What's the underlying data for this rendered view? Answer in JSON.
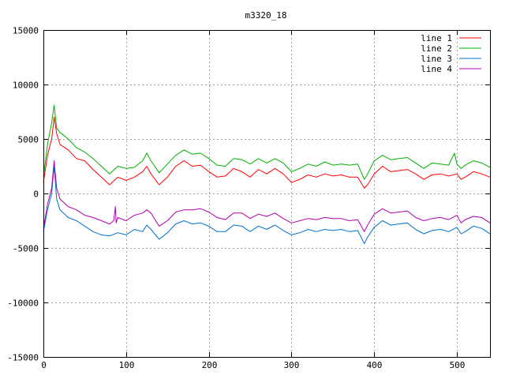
{
  "chart_data": {
    "type": "line",
    "title": "m3320_18",
    "xlabel": "",
    "ylabel": "",
    "xlim": [
      0,
      540
    ],
    "ylim": [
      -15000,
      15000
    ],
    "xticks": [
      0,
      100,
      200,
      300,
      400,
      500
    ],
    "yticks": [
      -15000,
      -10000,
      -5000,
      0,
      5000,
      10000,
      15000
    ],
    "grid": true,
    "legend_position": "top-right",
    "series": [
      {
        "name": "line 1",
        "color": "#ff0000",
        "points": [
          [
            0,
            1000
          ],
          [
            5,
            3500
          ],
          [
            10,
            5000
          ],
          [
            13,
            7000
          ],
          [
            16,
            5500
          ],
          [
            20,
            4500
          ],
          [
            30,
            4000
          ],
          [
            40,
            3200
          ],
          [
            50,
            3000
          ],
          [
            60,
            2200
          ],
          [
            70,
            1500
          ],
          [
            80,
            800
          ],
          [
            90,
            1500
          ],
          [
            100,
            1200
          ],
          [
            110,
            1500
          ],
          [
            120,
            2000
          ],
          [
            125,
            2500
          ],
          [
            130,
            1800
          ],
          [
            140,
            800
          ],
          [
            150,
            1500
          ],
          [
            160,
            2500
          ],
          [
            170,
            3000
          ],
          [
            180,
            2500
          ],
          [
            190,
            2600
          ],
          [
            200,
            2000
          ],
          [
            210,
            1500
          ],
          [
            220,
            1600
          ],
          [
            230,
            2300
          ],
          [
            240,
            2000
          ],
          [
            250,
            1500
          ],
          [
            260,
            2200
          ],
          [
            270,
            1800
          ],
          [
            280,
            2300
          ],
          [
            290,
            1800
          ],
          [
            300,
            1000
          ],
          [
            310,
            1300
          ],
          [
            320,
            1700
          ],
          [
            330,
            1500
          ],
          [
            340,
            1800
          ],
          [
            350,
            1600
          ],
          [
            360,
            1700
          ],
          [
            370,
            1500
          ],
          [
            380,
            1500
          ],
          [
            388,
            500
          ],
          [
            392,
            800
          ],
          [
            400,
            1800
          ],
          [
            410,
            2500
          ],
          [
            420,
            2000
          ],
          [
            430,
            2100
          ],
          [
            440,
            2200
          ],
          [
            450,
            1800
          ],
          [
            460,
            1300
          ],
          [
            470,
            1700
          ],
          [
            480,
            1800
          ],
          [
            490,
            1600
          ],
          [
            500,
            1800
          ],
          [
            505,
            1300
          ],
          [
            510,
            1500
          ],
          [
            520,
            2000
          ],
          [
            530,
            1800
          ],
          [
            540,
            1500
          ]
        ]
      },
      {
        "name": "line 2",
        "color": "#00b000",
        "points": [
          [
            0,
            1500
          ],
          [
            5,
            4500
          ],
          [
            10,
            6500
          ],
          [
            13,
            8100
          ],
          [
            16,
            6000
          ],
          [
            20,
            5600
          ],
          [
            30,
            5000
          ],
          [
            40,
            4200
          ],
          [
            50,
            3800
          ],
          [
            60,
            3200
          ],
          [
            70,
            2500
          ],
          [
            80,
            1800
          ],
          [
            90,
            2500
          ],
          [
            100,
            2300
          ],
          [
            110,
            2400
          ],
          [
            120,
            3000
          ],
          [
            125,
            3700
          ],
          [
            130,
            3000
          ],
          [
            140,
            1900
          ],
          [
            150,
            2700
          ],
          [
            160,
            3500
          ],
          [
            170,
            4000
          ],
          [
            180,
            3600
          ],
          [
            190,
            3700
          ],
          [
            200,
            3200
          ],
          [
            210,
            2600
          ],
          [
            220,
            2500
          ],
          [
            230,
            3200
          ],
          [
            240,
            3100
          ],
          [
            250,
            2700
          ],
          [
            260,
            3200
          ],
          [
            270,
            2800
          ],
          [
            280,
            3200
          ],
          [
            290,
            2800
          ],
          [
            300,
            2000
          ],
          [
            310,
            2300
          ],
          [
            320,
            2700
          ],
          [
            330,
            2500
          ],
          [
            340,
            2900
          ],
          [
            350,
            2600
          ],
          [
            360,
            2700
          ],
          [
            370,
            2600
          ],
          [
            380,
            2700
          ],
          [
            388,
            1300
          ],
          [
            392,
            1800
          ],
          [
            400,
            3000
          ],
          [
            410,
            3500
          ],
          [
            420,
            3100
          ],
          [
            430,
            3200
          ],
          [
            440,
            3300
          ],
          [
            450,
            2800
          ],
          [
            460,
            2300
          ],
          [
            470,
            2800
          ],
          [
            480,
            2700
          ],
          [
            490,
            2600
          ],
          [
            497,
            3700
          ],
          [
            500,
            2700
          ],
          [
            505,
            2300
          ],
          [
            510,
            2600
          ],
          [
            520,
            3000
          ],
          [
            530,
            2800
          ],
          [
            540,
            2400
          ]
        ]
      },
      {
        "name": "line 3",
        "color": "#0070d0",
        "points": [
          [
            0,
            -3500
          ],
          [
            5,
            -1500
          ],
          [
            10,
            0
          ],
          [
            13,
            2500
          ],
          [
            16,
            -500
          ],
          [
            20,
            -1500
          ],
          [
            30,
            -2200
          ],
          [
            40,
            -2500
          ],
          [
            50,
            -3000
          ],
          [
            60,
            -3500
          ],
          [
            70,
            -3800
          ],
          [
            80,
            -3900
          ],
          [
            90,
            -3600
          ],
          [
            100,
            -3800
          ],
          [
            110,
            -3300
          ],
          [
            120,
            -3500
          ],
          [
            125,
            -2900
          ],
          [
            130,
            -3300
          ],
          [
            140,
            -4200
          ],
          [
            150,
            -3600
          ],
          [
            160,
            -2800
          ],
          [
            170,
            -2500
          ],
          [
            180,
            -2800
          ],
          [
            190,
            -2700
          ],
          [
            200,
            -3000
          ],
          [
            210,
            -3500
          ],
          [
            220,
            -3500
          ],
          [
            230,
            -2900
          ],
          [
            240,
            -3000
          ],
          [
            250,
            -3500
          ],
          [
            260,
            -3000
          ],
          [
            270,
            -3300
          ],
          [
            280,
            -2900
          ],
          [
            290,
            -3400
          ],
          [
            300,
            -3800
          ],
          [
            310,
            -3600
          ],
          [
            320,
            -3300
          ],
          [
            330,
            -3500
          ],
          [
            340,
            -3300
          ],
          [
            350,
            -3400
          ],
          [
            360,
            -3300
          ],
          [
            370,
            -3500
          ],
          [
            380,
            -3400
          ],
          [
            388,
            -4600
          ],
          [
            392,
            -4000
          ],
          [
            400,
            -3100
          ],
          [
            410,
            -2500
          ],
          [
            420,
            -2900
          ],
          [
            430,
            -2800
          ],
          [
            440,
            -2700
          ],
          [
            450,
            -3300
          ],
          [
            460,
            -3700
          ],
          [
            470,
            -3400
          ],
          [
            480,
            -3300
          ],
          [
            490,
            -3500
          ],
          [
            500,
            -3100
          ],
          [
            505,
            -3700
          ],
          [
            510,
            -3500
          ],
          [
            520,
            -3000
          ],
          [
            530,
            -3200
          ],
          [
            540,
            -3700
          ]
        ]
      },
      {
        "name": "line 4",
        "color": "#b000b0",
        "points": [
          [
            0,
            -3200
          ],
          [
            5,
            -1000
          ],
          [
            10,
            500
          ],
          [
            13,
            3000
          ],
          [
            16,
            500
          ],
          [
            20,
            -500
          ],
          [
            30,
            -1200
          ],
          [
            40,
            -1500
          ],
          [
            50,
            -2000
          ],
          [
            60,
            -2200
          ],
          [
            70,
            -2500
          ],
          [
            80,
            -2800
          ],
          [
            85,
            -2500
          ],
          [
            87,
            -1200
          ],
          [
            88,
            -2700
          ],
          [
            90,
            -2200
          ],
          [
            100,
            -2500
          ],
          [
            110,
            -2000
          ],
          [
            120,
            -1800
          ],
          [
            125,
            -1500
          ],
          [
            130,
            -1800
          ],
          [
            140,
            -3000
          ],
          [
            150,
            -2500
          ],
          [
            160,
            -1700
          ],
          [
            170,
            -1500
          ],
          [
            180,
            -1500
          ],
          [
            190,
            -1400
          ],
          [
            200,
            -1700
          ],
          [
            210,
            -2200
          ],
          [
            220,
            -2400
          ],
          [
            230,
            -1800
          ],
          [
            240,
            -1800
          ],
          [
            250,
            -2300
          ],
          [
            260,
            -1900
          ],
          [
            270,
            -2100
          ],
          [
            280,
            -1800
          ],
          [
            290,
            -2300
          ],
          [
            300,
            -2700
          ],
          [
            310,
            -2500
          ],
          [
            320,
            -2300
          ],
          [
            330,
            -2400
          ],
          [
            340,
            -2200
          ],
          [
            350,
            -2300
          ],
          [
            360,
            -2300
          ],
          [
            370,
            -2500
          ],
          [
            380,
            -2400
          ],
          [
            388,
            -3500
          ],
          [
            392,
            -2900
          ],
          [
            400,
            -1900
          ],
          [
            410,
            -1400
          ],
          [
            420,
            -1800
          ],
          [
            430,
            -1700
          ],
          [
            440,
            -1600
          ],
          [
            450,
            -2200
          ],
          [
            460,
            -2500
          ],
          [
            470,
            -2300
          ],
          [
            480,
            -2200
          ],
          [
            490,
            -2400
          ],
          [
            500,
            -2000
          ],
          [
            505,
            -2700
          ],
          [
            510,
            -2400
          ],
          [
            520,
            -2100
          ],
          [
            530,
            -2200
          ],
          [
            540,
            -2700
          ]
        ]
      }
    ]
  }
}
